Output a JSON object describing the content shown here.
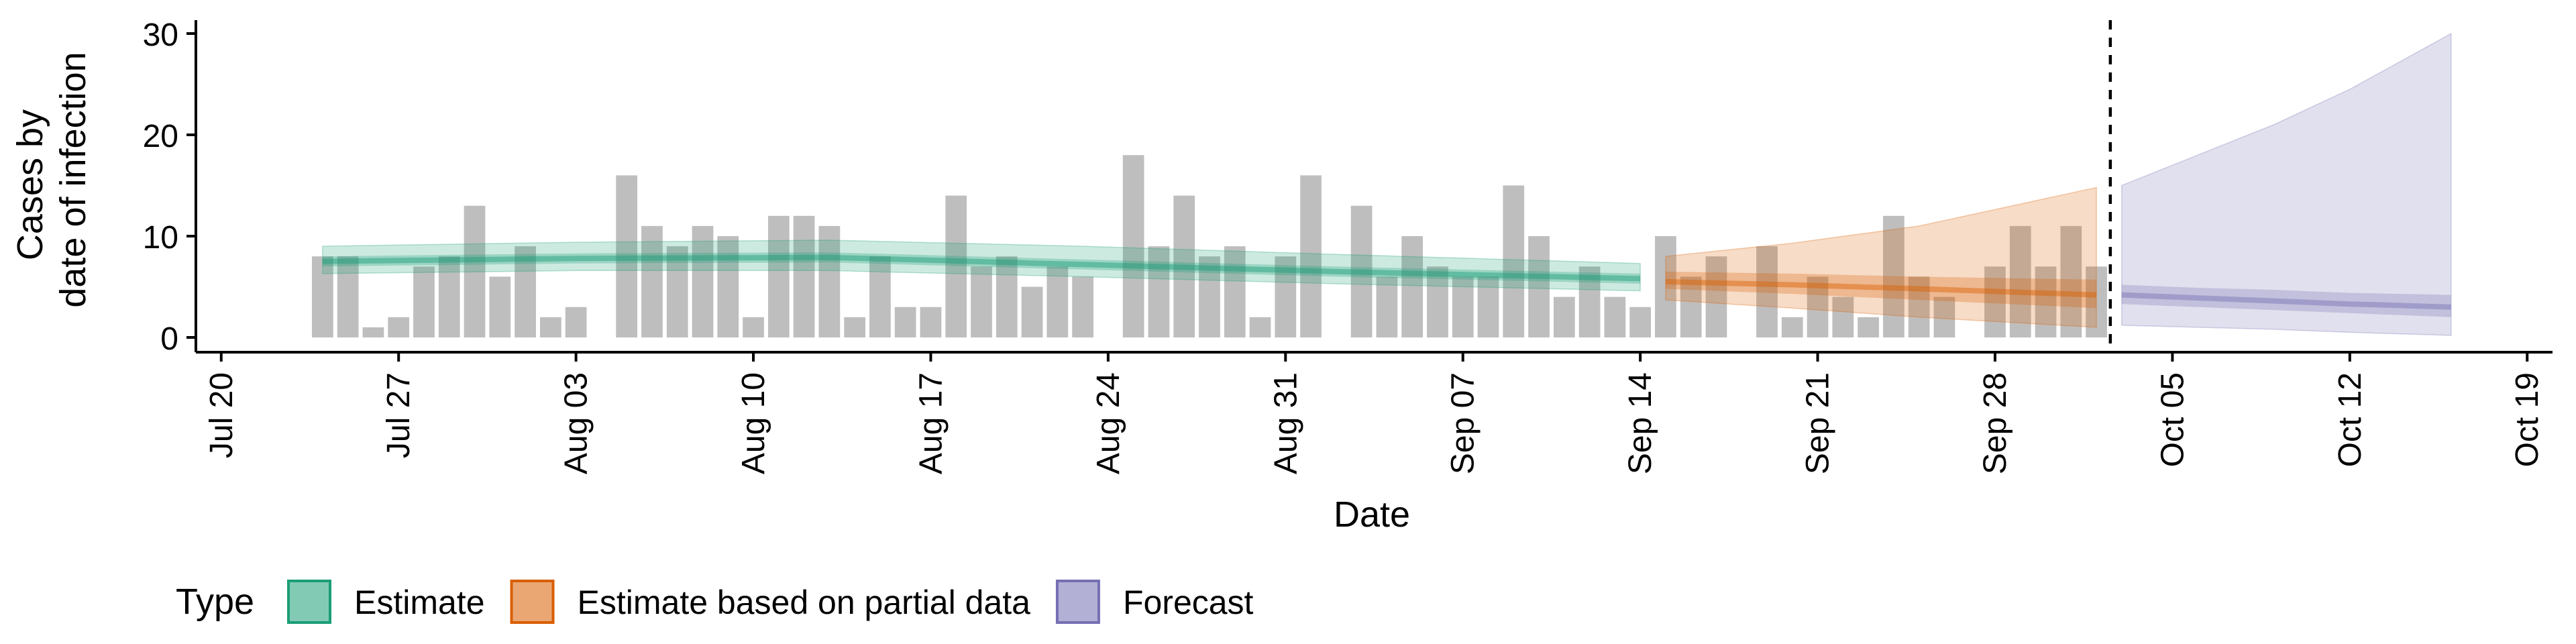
{
  "chart_data": {
    "type": "bar",
    "title": "",
    "xlabel": "Date",
    "ylabel_lines": [
      "Cases by",
      "date of infection"
    ],
    "ylim": [
      0,
      30
    ],
    "y_ticks": [
      0,
      10,
      20,
      30
    ],
    "x_range": [
      "2020-07-19",
      "2020-10-20"
    ],
    "x_ticks": [
      {
        "date": "2020-07-20",
        "label": "Jul 20"
      },
      {
        "date": "2020-07-27",
        "label": "Jul 27"
      },
      {
        "date": "2020-08-03",
        "label": "Aug 03"
      },
      {
        "date": "2020-08-10",
        "label": "Aug 10"
      },
      {
        "date": "2020-08-17",
        "label": "Aug 17"
      },
      {
        "date": "2020-08-24",
        "label": "Aug 24"
      },
      {
        "date": "2020-08-31",
        "label": "Aug 31"
      },
      {
        "date": "2020-09-07",
        "label": "Sep 07"
      },
      {
        "date": "2020-09-14",
        "label": "Sep 14"
      },
      {
        "date": "2020-09-21",
        "label": "Sep 21"
      },
      {
        "date": "2020-09-28",
        "label": "Sep 28"
      },
      {
        "date": "2020-10-05",
        "label": "Oct 05"
      },
      {
        "date": "2020-10-12",
        "label": "Oct 12"
      },
      {
        "date": "2020-10-19",
        "label": "Oct 19"
      }
    ],
    "grid": false,
    "cutoff_date": "2020-10-02",
    "bar_color": "#bebebe",
    "observed_cases": [
      {
        "date": "2020-07-24",
        "value": 8
      },
      {
        "date": "2020-07-25",
        "value": 8
      },
      {
        "date": "2020-07-26",
        "value": 1
      },
      {
        "date": "2020-07-27",
        "value": 2
      },
      {
        "date": "2020-07-28",
        "value": 7
      },
      {
        "date": "2020-07-29",
        "value": 8
      },
      {
        "date": "2020-07-30",
        "value": 13
      },
      {
        "date": "2020-07-31",
        "value": 6
      },
      {
        "date": "2020-08-01",
        "value": 9
      },
      {
        "date": "2020-08-02",
        "value": 2
      },
      {
        "date": "2020-08-03",
        "value": 3
      },
      {
        "date": "2020-08-04",
        "value": 0
      },
      {
        "date": "2020-08-05",
        "value": 16
      },
      {
        "date": "2020-08-06",
        "value": 11
      },
      {
        "date": "2020-08-07",
        "value": 9
      },
      {
        "date": "2020-08-08",
        "value": 11
      },
      {
        "date": "2020-08-09",
        "value": 10
      },
      {
        "date": "2020-08-10",
        "value": 2
      },
      {
        "date": "2020-08-11",
        "value": 12
      },
      {
        "date": "2020-08-12",
        "value": 12
      },
      {
        "date": "2020-08-13",
        "value": 11
      },
      {
        "date": "2020-08-14",
        "value": 2
      },
      {
        "date": "2020-08-15",
        "value": 8
      },
      {
        "date": "2020-08-16",
        "value": 3
      },
      {
        "date": "2020-08-17",
        "value": 3
      },
      {
        "date": "2020-08-18",
        "value": 14
      },
      {
        "date": "2020-08-19",
        "value": 7
      },
      {
        "date": "2020-08-20",
        "value": 8
      },
      {
        "date": "2020-08-21",
        "value": 5
      },
      {
        "date": "2020-08-22",
        "value": 7
      },
      {
        "date": "2020-08-23",
        "value": 6
      },
      {
        "date": "2020-08-24",
        "value": 0
      },
      {
        "date": "2020-08-25",
        "value": 18
      },
      {
        "date": "2020-08-26",
        "value": 9
      },
      {
        "date": "2020-08-27",
        "value": 14
      },
      {
        "date": "2020-08-28",
        "value": 8
      },
      {
        "date": "2020-08-29",
        "value": 9
      },
      {
        "date": "2020-08-30",
        "value": 2
      },
      {
        "date": "2020-08-31",
        "value": 8
      },
      {
        "date": "2020-09-01",
        "value": 16
      },
      {
        "date": "2020-09-02",
        "value": 0
      },
      {
        "date": "2020-09-03",
        "value": 13
      },
      {
        "date": "2020-09-04",
        "value": 6
      },
      {
        "date": "2020-09-05",
        "value": 10
      },
      {
        "date": "2020-09-06",
        "value": 7
      },
      {
        "date": "2020-09-07",
        "value": 6
      },
      {
        "date": "2020-09-08",
        "value": 6
      },
      {
        "date": "2020-09-09",
        "value": 15
      },
      {
        "date": "2020-09-10",
        "value": 10
      },
      {
        "date": "2020-09-11",
        "value": 4
      },
      {
        "date": "2020-09-12",
        "value": 7
      },
      {
        "date": "2020-09-13",
        "value": 4
      },
      {
        "date": "2020-09-14",
        "value": 3
      },
      {
        "date": "2020-09-15",
        "value": 10
      },
      {
        "date": "2020-09-16",
        "value": 6
      },
      {
        "date": "2020-09-17",
        "value": 8
      },
      {
        "date": "2020-09-18",
        "value": 0
      },
      {
        "date": "2020-09-19",
        "value": 9
      },
      {
        "date": "2020-09-20",
        "value": 2
      },
      {
        "date": "2020-09-21",
        "value": 6
      },
      {
        "date": "2020-09-22",
        "value": 4
      },
      {
        "date": "2020-09-23",
        "value": 2
      },
      {
        "date": "2020-09-24",
        "value": 12
      },
      {
        "date": "2020-09-25",
        "value": 6
      },
      {
        "date": "2020-09-26",
        "value": 4
      },
      {
        "date": "2020-09-27",
        "value": 0
      },
      {
        "date": "2020-09-28",
        "value": 7
      },
      {
        "date": "2020-09-29",
        "value": 11
      },
      {
        "date": "2020-09-30",
        "value": 7
      },
      {
        "date": "2020-10-01",
        "value": 11
      },
      {
        "date": "2020-10-02",
        "value": 7
      }
    ],
    "series": [
      {
        "name": "Estimate",
        "color": "#1b9e77",
        "start": "2020-07-24",
        "end": "2020-09-14",
        "dates": [
          "2020-07-24",
          "2020-08-03",
          "2020-08-13",
          "2020-08-23",
          "2020-09-02",
          "2020-09-14"
        ],
        "median": [
          7.5,
          7.8,
          7.9,
          7.2,
          6.5,
          5.8
        ],
        "lower_50": [
          7.0,
          7.3,
          7.4,
          6.7,
          6.0,
          5.3
        ],
        "upper_50": [
          8.0,
          8.3,
          8.4,
          7.7,
          7.0,
          6.3
        ],
        "lower_90": [
          6.3,
          6.6,
          6.6,
          6.0,
          5.3,
          4.6
        ],
        "upper_90": [
          9.0,
          9.4,
          9.6,
          9.0,
          8.2,
          7.3
        ]
      },
      {
        "name": "Estimate based on partial data",
        "color": "#d95f02",
        "start": "2020-09-15",
        "end": "2020-10-02",
        "dates": [
          "2020-09-15",
          "2020-09-20",
          "2020-09-25",
          "2020-10-02"
        ],
        "median": [
          5.5,
          5.2,
          4.8,
          4.2
        ],
        "lower_50": [
          4.8,
          4.3,
          3.7,
          2.9
        ],
        "upper_50": [
          6.5,
          6.3,
          6.0,
          5.7
        ],
        "lower_90": [
          3.7,
          2.9,
          2.0,
          1.0
        ],
        "upper_90": [
          8.0,
          9.3,
          11.0,
          14.8
        ]
      },
      {
        "name": "Forecast",
        "color": "#7570b3",
        "start": "2020-10-03",
        "end": "2020-10-16",
        "dates": [
          "2020-10-03",
          "2020-10-06",
          "2020-10-09",
          "2020-10-12",
          "2020-10-16"
        ],
        "median": [
          4.2,
          3.9,
          3.6,
          3.3,
          3.0
        ],
        "lower_50": [
          3.3,
          3.0,
          2.7,
          2.4,
          2.0
        ],
        "upper_50": [
          5.2,
          4.9,
          4.7,
          4.4,
          4.2
        ],
        "lower_90": [
          1.2,
          1.0,
          0.8,
          0.5,
          0.2
        ],
        "upper_90": [
          15.0,
          18.0,
          21.0,
          24.5,
          30.0
        ]
      }
    ],
    "legend": {
      "placement": "bottom",
      "title": "Type",
      "entries": [
        {
          "label": "Estimate",
          "color": "#1b9e77"
        },
        {
          "label": "Estimate based on partial data",
          "color": "#d95f02"
        },
        {
          "label": "Forecast",
          "color": "#7570b3"
        }
      ]
    }
  }
}
